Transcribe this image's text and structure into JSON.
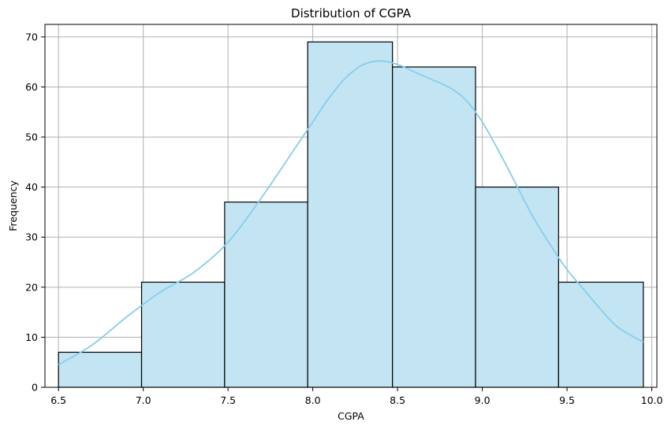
{
  "chart_data": {
    "type": "bar",
    "title": "Distribution of CGPA",
    "xlabel": "CGPA",
    "ylabel": "Frequency",
    "bins": [
      {
        "start": 6.5,
        "end": 6.99,
        "count": 7
      },
      {
        "start": 6.99,
        "end": 7.48,
        "count": 21
      },
      {
        "start": 7.48,
        "end": 7.97,
        "count": 37
      },
      {
        "start": 7.97,
        "end": 8.47,
        "count": 69
      },
      {
        "start": 8.47,
        "end": 8.96,
        "count": 64
      },
      {
        "start": 8.96,
        "end": 9.45,
        "count": 40
      },
      {
        "start": 9.45,
        "end": 9.95,
        "count": 21
      }
    ],
    "kde": {
      "x": [
        6.5,
        6.7,
        6.9,
        7.1,
        7.3,
        7.5,
        7.7,
        7.9,
        8.0,
        8.1,
        8.2,
        8.3,
        8.4,
        8.5,
        8.6,
        8.7,
        8.8,
        8.9,
        9.0,
        9.1,
        9.2,
        9.3,
        9.4,
        9.5,
        9.6,
        9.7,
        9.8,
        9.95
      ],
      "y": [
        4.5,
        8.5,
        14,
        19,
        23,
        29,
        38,
        48,
        53,
        58,
        62,
        64.5,
        65.2,
        64.5,
        63,
        61.5,
        60,
        57.5,
        53,
        47,
        40.5,
        34,
        28.5,
        23.5,
        19.5,
        15.5,
        12,
        9
      ]
    },
    "xlim": [
      6.42,
      10.03
    ],
    "ylim": [
      0,
      72.5
    ],
    "xticks": [
      6.5,
      7.0,
      7.5,
      8.0,
      8.5,
      9.0,
      9.5,
      10.0
    ],
    "xtick_labels": [
      "6.5",
      "7.0",
      "7.5",
      "8.0",
      "8.5",
      "9.0",
      "9.5",
      "10.0"
    ],
    "yticks": [
      0,
      10,
      20,
      30,
      40,
      50,
      60,
      70
    ],
    "ytick_labels": [
      "0",
      "10",
      "20",
      "30",
      "40",
      "50",
      "60",
      "70"
    ],
    "grid": true,
    "colors": {
      "bar_fill": "#c3e4f3",
      "bar_edge": "#000000",
      "kde_line": "#87ceeb",
      "grid": "#b0b0b0"
    }
  }
}
